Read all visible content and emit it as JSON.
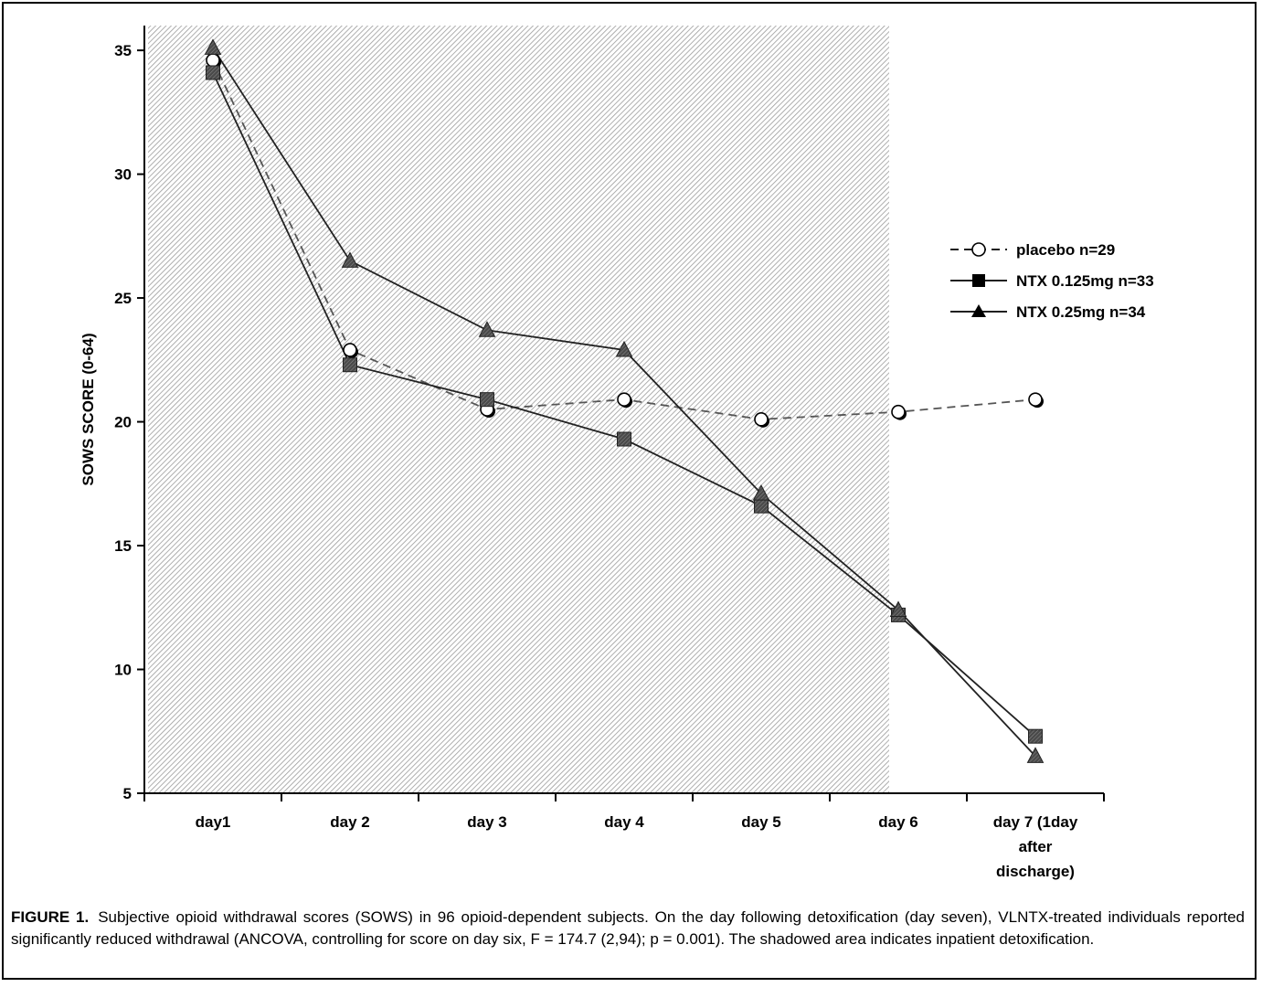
{
  "chart_data": {
    "type": "line",
    "ylabel": "SOWS SCORE (0-64)",
    "xlabel": "",
    "ylim": [
      5,
      36
    ],
    "yticks": [
      5,
      10,
      15,
      20,
      25,
      30,
      35
    ],
    "categories": [
      "day1",
      "day 2",
      "day 3",
      "day 4",
      "day 5",
      "day 6",
      "day 7 (1day after discharge)"
    ],
    "category_lines": [
      [
        "day1"
      ],
      [
        "day 2"
      ],
      [
        "day 3"
      ],
      [
        "day 4"
      ],
      [
        "day 5"
      ],
      [
        "day 6"
      ],
      [
        "day 7 (1day",
        "after",
        "discharge)"
      ]
    ],
    "shaded_region": {
      "from": "day1",
      "to": "day 6",
      "pattern": "diagonal-hatch"
    },
    "legend_position": "right",
    "series": [
      {
        "name": "placebo n=29",
        "marker": "circle-open",
        "line": "dashed",
        "values": [
          34.6,
          22.9,
          20.5,
          20.9,
          20.1,
          20.4,
          20.9
        ]
      },
      {
        "name": "NTX 0.125mg n=33",
        "marker": "square-filled",
        "line": "solid",
        "values": [
          34.1,
          22.3,
          20.9,
          19.3,
          16.6,
          12.2,
          7.3
        ]
      },
      {
        "name": "NTX 0.25mg n=34",
        "marker": "triangle-filled",
        "line": "solid",
        "values": [
          35.1,
          26.5,
          23.7,
          22.9,
          17.1,
          12.4,
          6.5
        ]
      }
    ]
  },
  "caption": {
    "label": "FIGURE 1.",
    "text": "Subjective opioid withdrawal scores (SOWS) in 96 opioid-dependent subjects. On the day following detoxification (day seven), VLNTX-treated individuals reported significantly reduced withdrawal (ANCOVA, controlling for score on day six, F = 174.7 (2,94); p = 0.001). The shadowed area indicates inpatient detoxification."
  }
}
